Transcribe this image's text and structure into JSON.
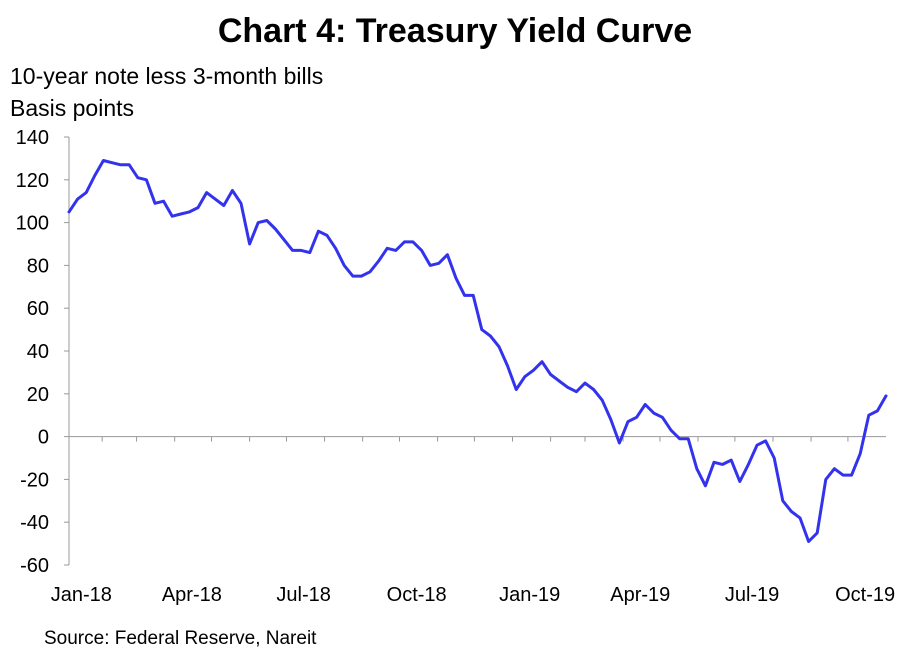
{
  "header": {
    "title": "Chart 4: Treasury Yield Curve",
    "subtitle": "10-year note less 3-month bills",
    "ylabel": "Basis points"
  },
  "footer": {
    "source": "Source: Federal Reserve, Nareit"
  },
  "colors": {
    "line": "#3333ee",
    "axis": "#999999"
  },
  "chart_data": {
    "type": "line",
    "title": "Chart 4: Treasury Yield Curve",
    "subtitle": "10-year note less 3-month bills",
    "ylabel": "Basis points",
    "xlabel": "",
    "ylim": [
      -60,
      140
    ],
    "yticks": [
      "-60",
      "-40",
      "-20",
      "0",
      "20",
      "40",
      "60",
      "80",
      "100",
      "120",
      "140"
    ],
    "yticks_values": [
      -60,
      -40,
      -20,
      0,
      20,
      40,
      60,
      80,
      100,
      120,
      140
    ],
    "xlim": [
      "2018-01-05",
      "2019-11-01"
    ],
    "xticks": [
      "Jan-18",
      "Apr-18",
      "Jul-18",
      "Oct-18",
      "Jan-19",
      "Apr-19",
      "Jul-19",
      "Oct-19"
    ],
    "xticks_dates": [
      "2018-01-15",
      "2018-04-15",
      "2018-07-15",
      "2018-10-15",
      "2019-01-15",
      "2019-04-15",
      "2019-07-15",
      "2019-10-15"
    ],
    "grid": false,
    "series": [
      {
        "name": "",
        "x": [
          "2018-01-05",
          "2018-01-12",
          "2018-01-19",
          "2018-01-26",
          "2018-02-02",
          "2018-02-09",
          "2018-02-16",
          "2018-02-23",
          "2018-03-02",
          "2018-03-09",
          "2018-03-16",
          "2018-03-23",
          "2018-03-30",
          "2018-04-06",
          "2018-04-13",
          "2018-04-20",
          "2018-04-27",
          "2018-05-04",
          "2018-05-11",
          "2018-05-18",
          "2018-05-25",
          "2018-06-01",
          "2018-06-08",
          "2018-06-15",
          "2018-06-22",
          "2018-06-29",
          "2018-07-06",
          "2018-07-13",
          "2018-07-20",
          "2018-07-27",
          "2018-08-03",
          "2018-08-10",
          "2018-08-17",
          "2018-08-24",
          "2018-08-31",
          "2018-09-07",
          "2018-09-14",
          "2018-09-21",
          "2018-09-28",
          "2018-10-05",
          "2018-10-12",
          "2018-10-19",
          "2018-10-26",
          "2018-11-02",
          "2018-11-09",
          "2018-11-16",
          "2018-11-23",
          "2018-11-30",
          "2018-12-07",
          "2018-12-14",
          "2018-12-21",
          "2018-12-28",
          "2019-01-04",
          "2019-01-11",
          "2019-01-18",
          "2019-01-25",
          "2019-02-01",
          "2019-02-08",
          "2019-02-15",
          "2019-02-22",
          "2019-03-01",
          "2019-03-08",
          "2019-03-15",
          "2019-03-22",
          "2019-03-29",
          "2019-04-05",
          "2019-04-12",
          "2019-04-19",
          "2019-04-26",
          "2019-05-03",
          "2019-05-10",
          "2019-05-17",
          "2019-05-24",
          "2019-05-31",
          "2019-06-07",
          "2019-06-14",
          "2019-06-21",
          "2019-06-28",
          "2019-07-05",
          "2019-07-12",
          "2019-07-19",
          "2019-07-26",
          "2019-08-02",
          "2019-08-09",
          "2019-08-16",
          "2019-08-23",
          "2019-08-30",
          "2019-09-06",
          "2019-09-13",
          "2019-09-20",
          "2019-09-27",
          "2019-10-04",
          "2019-10-11",
          "2019-10-18",
          "2019-10-25",
          "2019-11-01"
        ],
        "values": [
          105,
          111,
          114,
          122,
          129,
          128,
          127,
          127,
          121,
          120,
          109,
          110,
          103,
          104,
          105,
          107,
          114,
          111,
          108,
          115,
          109,
          90,
          100,
          101,
          97,
          92,
          87,
          87,
          86,
          96,
          94,
          88,
          80,
          75,
          75,
          77,
          82,
          88,
          87,
          91,
          91,
          87,
          80,
          81,
          85,
          74,
          66,
          66,
          50,
          47,
          42,
          33,
          22,
          28,
          31,
          35,
          29,
          26,
          23,
          21,
          25,
          22,
          17,
          8,
          -3,
          7,
          9,
          15,
          11,
          9,
          3,
          -1,
          -1,
          -15,
          -23,
          -12,
          -13,
          -11,
          -21,
          -13,
          -4,
          -2,
          -10,
          -30,
          -35,
          -38,
          -49,
          -45,
          -20,
          -15,
          -18,
          -18,
          -8,
          10,
          12,
          19
        ]
      }
    ]
  }
}
